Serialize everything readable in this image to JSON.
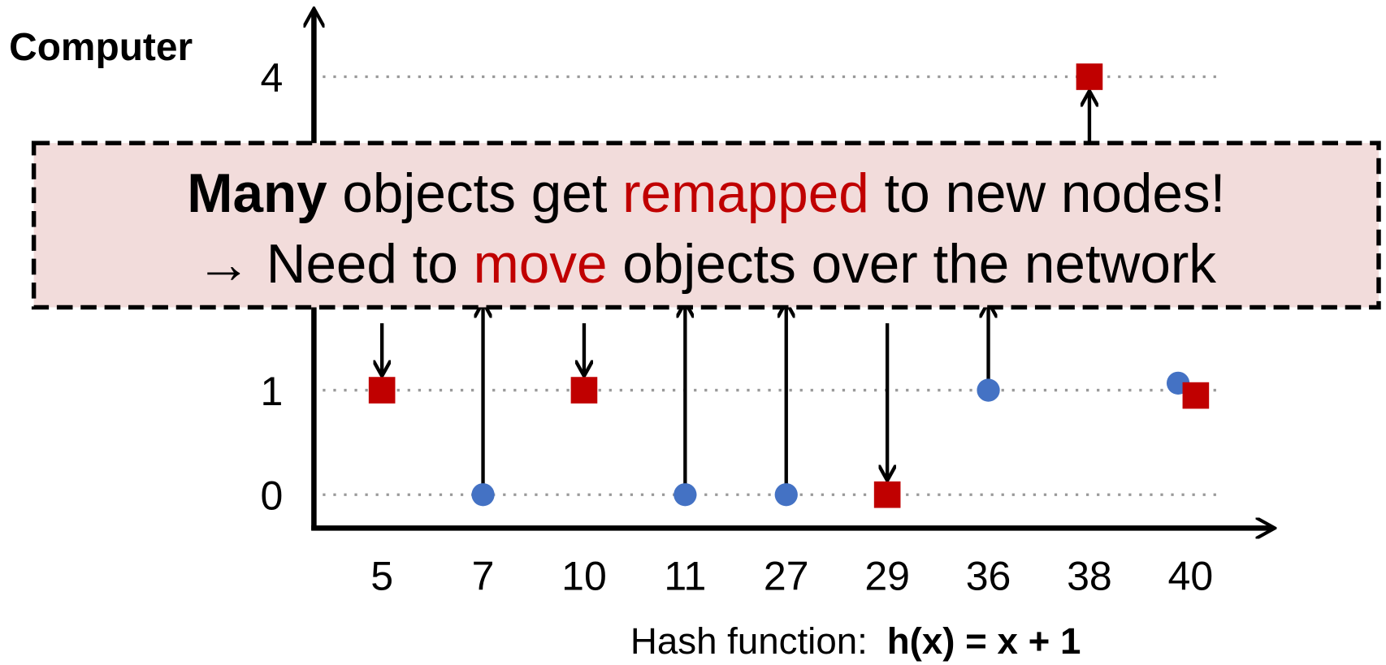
{
  "chart_data": {
    "type": "scatter",
    "y_label": "Computer",
    "x_label": {
      "text": "Hash function:",
      "formula": "h(x) = x + 1"
    },
    "categories": [
      "5",
      "7",
      "10",
      "11",
      "27",
      "29",
      "36",
      "38",
      "40"
    ],
    "series": [
      {
        "color": "#4472c4",
        "marker": "circle",
        "values": [
          null,
          0,
          null,
          0,
          0,
          null,
          1,
          null,
          1
        ]
      },
      {
        "color": "#c00000",
        "marker": "square",
        "values": [
          1,
          null,
          1,
          null,
          null,
          0,
          null,
          4,
          1
        ]
      }
    ],
    "ylim": [
      -0.32,
      4.65
    ],
    "yticks": [
      0,
      1,
      4
    ],
    "grid": true,
    "annotation": {
      "line1": [
        {
          "text": "Many",
          "style": "bold"
        },
        {
          "text": " objects get "
        },
        {
          "text": "remapped",
          "style": "red"
        },
        {
          "text": " to new nodes!"
        }
      ],
      "line2": [
        {
          "text": "→ Need to "
        },
        {
          "text": "move",
          "style": "red"
        },
        {
          "text": " objects over the network"
        }
      ]
    }
  }
}
